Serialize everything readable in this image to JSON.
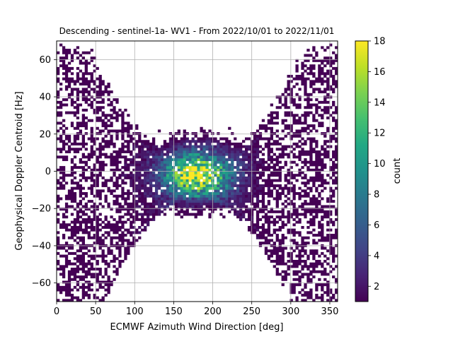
{
  "chart_data": {
    "type": "heatmap",
    "title": "Descending - sentinel-1a- WV1 - From 2022/10/01 to 2022/11/01",
    "xlabel": "ECMWF Azimuth Wind Direction [deg]",
    "ylabel": "Geophysical Doppler Centroid [Hz]",
    "xlim": [
      0,
      360
    ],
    "ylim": [
      -70,
      70
    ],
    "xticks": [
      "0",
      "50",
      "100",
      "150",
      "200",
      "250",
      "300",
      "350"
    ],
    "yticks": [
      "60",
      "40",
      "20",
      "0",
      "−20",
      "−40",
      "−60"
    ],
    "grid": true,
    "colormap": "viridis",
    "colorbar": {
      "label": "count",
      "range": [
        1,
        18
      ],
      "ticks": [
        "2",
        "4",
        "6",
        "8",
        "10",
        "12",
        "14",
        "16",
        "18"
      ]
    },
    "distribution": {
      "description_of_density": "V-shaped density of counts centered near x=180 deg, y=0 Hz, arms rising toward y=60 Hz at x=0 and x=360 deg",
      "peak_count": 18,
      "peak_location": [
        175,
        2
      ],
      "bin_width_deg": 3.6,
      "bin_height_hz": 1.4
    }
  }
}
